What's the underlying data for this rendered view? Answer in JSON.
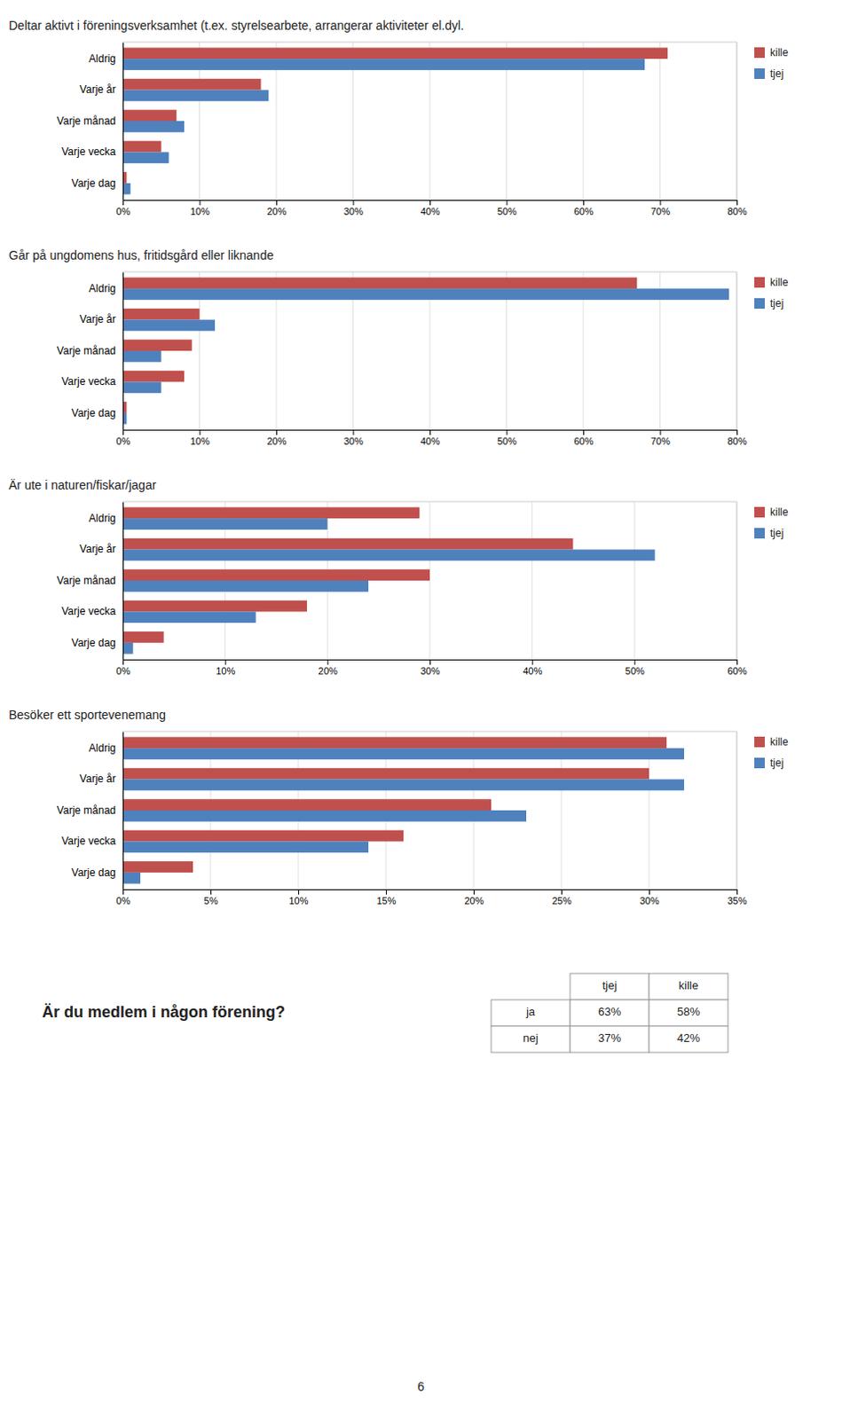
{
  "chart_data": [
    {
      "type": "bar",
      "orientation": "horizontal",
      "title": "Deltar aktivt i föreningsverksamhet (t.ex. styrelsearbete, arrangerar aktiviteter el.dyl.",
      "categories": [
        "Aldrig",
        "Varje år",
        "Varje månad",
        "Varje vecka",
        "Varje dag"
      ],
      "series": [
        {
          "name": "kille",
          "color": "#C0504D",
          "values": [
            0.71,
            0.18,
            0.07,
            0.05,
            0.005
          ]
        },
        {
          "name": "tjej",
          "color": "#4F81BD",
          "values": [
            0.68,
            0.19,
            0.08,
            0.06,
            0.01
          ]
        }
      ],
      "xlim": [
        0,
        0.8
      ],
      "xticks": [
        {
          "value": 0,
          "label": "0%"
        },
        {
          "value": 0.1,
          "label": "10%"
        },
        {
          "value": 0.2,
          "label": "20%"
        },
        {
          "value": 0.3,
          "label": "30%"
        },
        {
          "value": 0.4,
          "label": "40%"
        },
        {
          "value": 0.5,
          "label": "50%"
        },
        {
          "value": 0.6,
          "label": "60%"
        },
        {
          "value": 0.7,
          "label": "70%"
        },
        {
          "value": 0.8,
          "label": "80%"
        }
      ],
      "grid": true,
      "legend": "right"
    },
    {
      "type": "bar",
      "orientation": "horizontal",
      "title": "Går på ungdomens hus, fritidsgård eller liknande",
      "categories": [
        "Aldrig",
        "Varje år",
        "Varje månad",
        "Varje vecka",
        "Varje dag"
      ],
      "series": [
        {
          "name": "kille",
          "color": "#C0504D",
          "values": [
            0.67,
            0.1,
            0.09,
            0.08,
            0.005
          ]
        },
        {
          "name": "tjej",
          "color": "#4F81BD",
          "values": [
            0.79,
            0.12,
            0.05,
            0.05,
            0.005
          ]
        }
      ],
      "xlim": [
        0,
        0.8
      ],
      "xticks": [
        {
          "value": 0,
          "label": "0%"
        },
        {
          "value": 0.1,
          "label": "10%"
        },
        {
          "value": 0.2,
          "label": "20%"
        },
        {
          "value": 0.3,
          "label": "30%"
        },
        {
          "value": 0.4,
          "label": "40%"
        },
        {
          "value": 0.5,
          "label": "50%"
        },
        {
          "value": 0.6,
          "label": "60%"
        },
        {
          "value": 0.7,
          "label": "70%"
        },
        {
          "value": 0.8,
          "label": "80%"
        }
      ],
      "grid": true,
      "legend": "right"
    },
    {
      "type": "bar",
      "orientation": "horizontal",
      "title": "Är ute i naturen/fiskar/jagar",
      "categories": [
        "Aldrig",
        "Varje år",
        "Varje månad",
        "Varje vecka",
        "Varje dag"
      ],
      "series": [
        {
          "name": "kille",
          "color": "#C0504D",
          "values": [
            0.29,
            0.44,
            0.3,
            0.18,
            0.04
          ]
        },
        {
          "name": "tjej",
          "color": "#4F81BD",
          "values": [
            0.2,
            0.52,
            0.24,
            0.13,
            0.01
          ]
        }
      ],
      "xlim": [
        0,
        0.6
      ],
      "xticks": [
        {
          "value": 0,
          "label": "0%"
        },
        {
          "value": 0.1,
          "label": "10%"
        },
        {
          "value": 0.2,
          "label": "20%"
        },
        {
          "value": 0.3,
          "label": "30%"
        },
        {
          "value": 0.4,
          "label": "40%"
        },
        {
          "value": 0.5,
          "label": "50%"
        },
        {
          "value": 0.6,
          "label": "60%"
        }
      ],
      "grid": true,
      "legend": "right"
    },
    {
      "type": "bar",
      "orientation": "horizontal",
      "title": "Besöker ett sportevenemang",
      "categories": [
        "Aldrig",
        "Varje år",
        "Varje månad",
        "Varje vecka",
        "Varje dag"
      ],
      "series": [
        {
          "name": "kille",
          "color": "#C0504D",
          "values": [
            0.31,
            0.3,
            0.21,
            0.16,
            0.04
          ]
        },
        {
          "name": "tjej",
          "color": "#4F81BD",
          "values": [
            0.32,
            0.32,
            0.23,
            0.14,
            0.01
          ]
        }
      ],
      "xlim": [
        0,
        0.35
      ],
      "xticks": [
        {
          "value": 0,
          "label": "0%"
        },
        {
          "value": 0.05,
          "label": "5%"
        },
        {
          "value": 0.1,
          "label": "10%"
        },
        {
          "value": 0.15,
          "label": "15%"
        },
        {
          "value": 0.2,
          "label": "20%"
        },
        {
          "value": 0.25,
          "label": "25%"
        },
        {
          "value": 0.3,
          "label": "30%"
        },
        {
          "value": 0.35,
          "label": "35%"
        }
      ],
      "grid": true,
      "legend": "right"
    },
    {
      "type": "table",
      "title": "Är du medlem i någon förening?",
      "categories": [
        "ja",
        "nej"
      ],
      "series": [
        {
          "name": "tjej",
          "values": [
            63,
            37
          ],
          "value_labels": [
            "63%",
            "37%"
          ]
        },
        {
          "name": "kille",
          "values": [
            58,
            42
          ],
          "value_labels": [
            "58%",
            "42%"
          ]
        }
      ]
    }
  ],
  "page_number": "6"
}
